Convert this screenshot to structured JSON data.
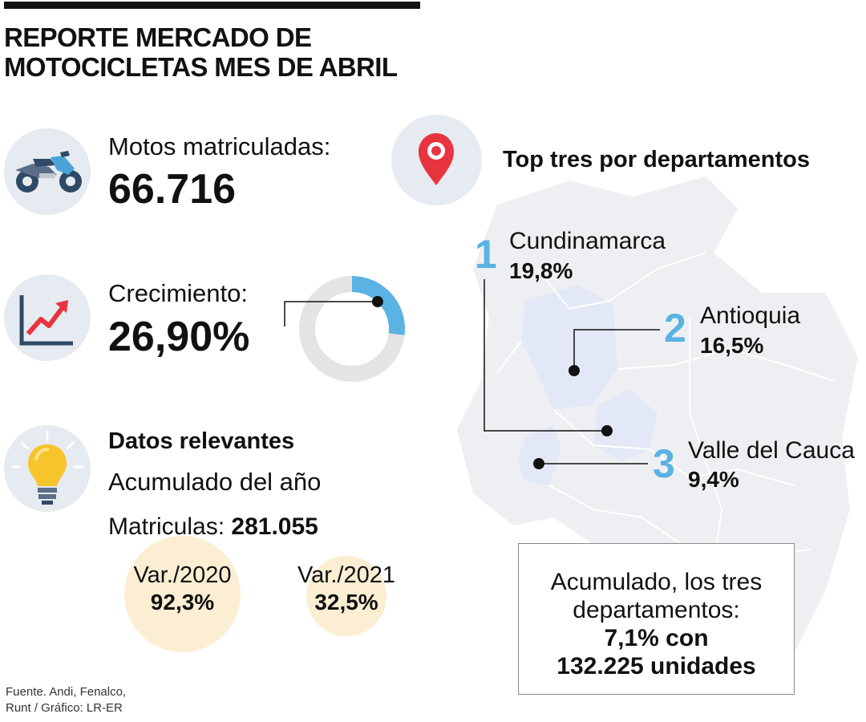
{
  "title": {
    "line1": "REPORTE MERCADO DE",
    "line2": "MOTOCICLETAS MES DE ABRIL"
  },
  "registered": {
    "label": "Motos matriculadas:",
    "value": "66.716"
  },
  "growth": {
    "label": "Crecimiento:",
    "value": "26,90%"
  },
  "relevant": {
    "heading": "Datos relevantes",
    "subheading": "Acumulado del año",
    "matriculas_label": "Matriculas:",
    "matriculas_value": "281.055",
    "var2020_label": "Var./2020",
    "var2020_value": "92,3%",
    "var2021_label": "Var./2021",
    "var2021_value": "32,5%"
  },
  "top": {
    "heading": "Top tres por departamentos",
    "items": [
      {
        "rank": "1",
        "name": "Cundinamarca",
        "value": "19,8%"
      },
      {
        "rank": "2",
        "name": "Antioquia",
        "value": "16,5%"
      },
      {
        "rank": "3",
        "name": "Valle del Cauca",
        "value": "9,4%"
      }
    ]
  },
  "summary": {
    "line1": "Acumulado, los tres",
    "line2": "departamentos:",
    "line3": "7,1% con",
    "line4": "132.225 unidades"
  },
  "source": {
    "line1": "Fuente. Andi, Fenalco,",
    "line2": "Runt / Gráfico: LR-ER"
  },
  "colors": {
    "accent_blue": "#5ab3e2",
    "donut_track": "#e4e4e4",
    "icon_circle": "#e6eaf1",
    "var_circle": "#fbeed2",
    "pin_red": "#e8343f"
  },
  "chart_data": {
    "type": "pie",
    "variant": "donut",
    "labels": [
      "Crecimiento",
      ""
    ],
    "values": [
      26.9,
      73.1
    ],
    "colors": [
      "#5ab3e2",
      "#e4e4e4"
    ]
  }
}
